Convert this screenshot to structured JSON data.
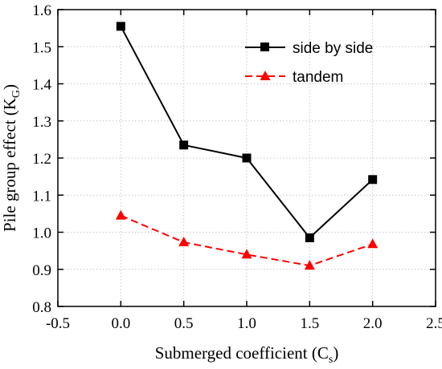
{
  "chart_data": {
    "type": "line",
    "xlabel": {
      "main": "Submerged coefficient (C",
      "sub": "s",
      "end": ")"
    },
    "ylabel": {
      "main": "Pile group effect (K",
      "sub": "G",
      "end": ")"
    },
    "xlim": [
      -0.5,
      2.5
    ],
    "ylim": [
      0.8,
      1.6
    ],
    "x_ticks": [
      "-0.5",
      "0.0",
      "0.5",
      "1.0",
      "1.5",
      "2.0",
      "2.5"
    ],
    "y_ticks": [
      "0.8",
      "0.9",
      "1.0",
      "1.1",
      "1.2",
      "1.3",
      "1.4",
      "1.5",
      "1.6"
    ],
    "grid": true,
    "legend_position": "top-right",
    "series": [
      {
        "name": "side by side",
        "color": "#000000",
        "marker": "square",
        "line_style": "solid",
        "x": [
          0.0,
          0.5,
          1.0,
          1.5,
          2.0
        ],
        "y": [
          1.555,
          1.235,
          1.2,
          0.985,
          1.142
        ]
      },
      {
        "name": "tandem",
        "color": "#ff0000",
        "marker": "triangle",
        "line_style": "dashed",
        "x": [
          0.0,
          0.5,
          1.0,
          1.5,
          2.0
        ],
        "y": [
          1.045,
          0.973,
          0.94,
          0.91,
          0.968
        ]
      }
    ]
  }
}
